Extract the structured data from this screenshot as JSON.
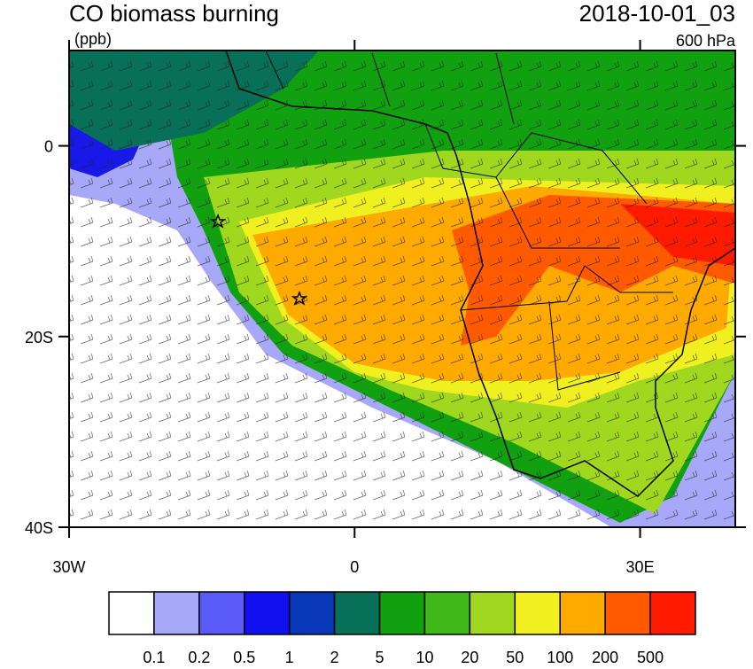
{
  "map": {
    "title": "CO biomass burning",
    "units": "(ppb)",
    "time": "2018-10-01_03",
    "level": "600 hPa",
    "lon_range": [
      -30,
      40
    ],
    "lat_range": [
      -40,
      10
    ],
    "lon_ticks": [
      {
        "value": -30,
        "label": "30W"
      },
      0,
      {
        "value": 30,
        "label": "30E"
      }
    ],
    "lat_ticks": [
      0,
      {
        "value": -20,
        "label": "20S"
      },
      {
        "value": -40,
        "label": "40S"
      }
    ],
    "colorbar": {
      "levels": [
        0.1,
        0.2,
        0.5,
        1,
        2,
        5,
        10,
        20,
        50,
        100,
        200,
        500
      ],
      "colors": [
        "#ffffff",
        "#a8a8f8",
        "#5a5af8",
        "#1010f0",
        "#0838b8",
        "#087058",
        "#10a010",
        "#40b818",
        "#a0d820",
        "#f0f020",
        "#ffaa00",
        "#ff5a00",
        "#ff1a00"
      ]
    }
  }
}
